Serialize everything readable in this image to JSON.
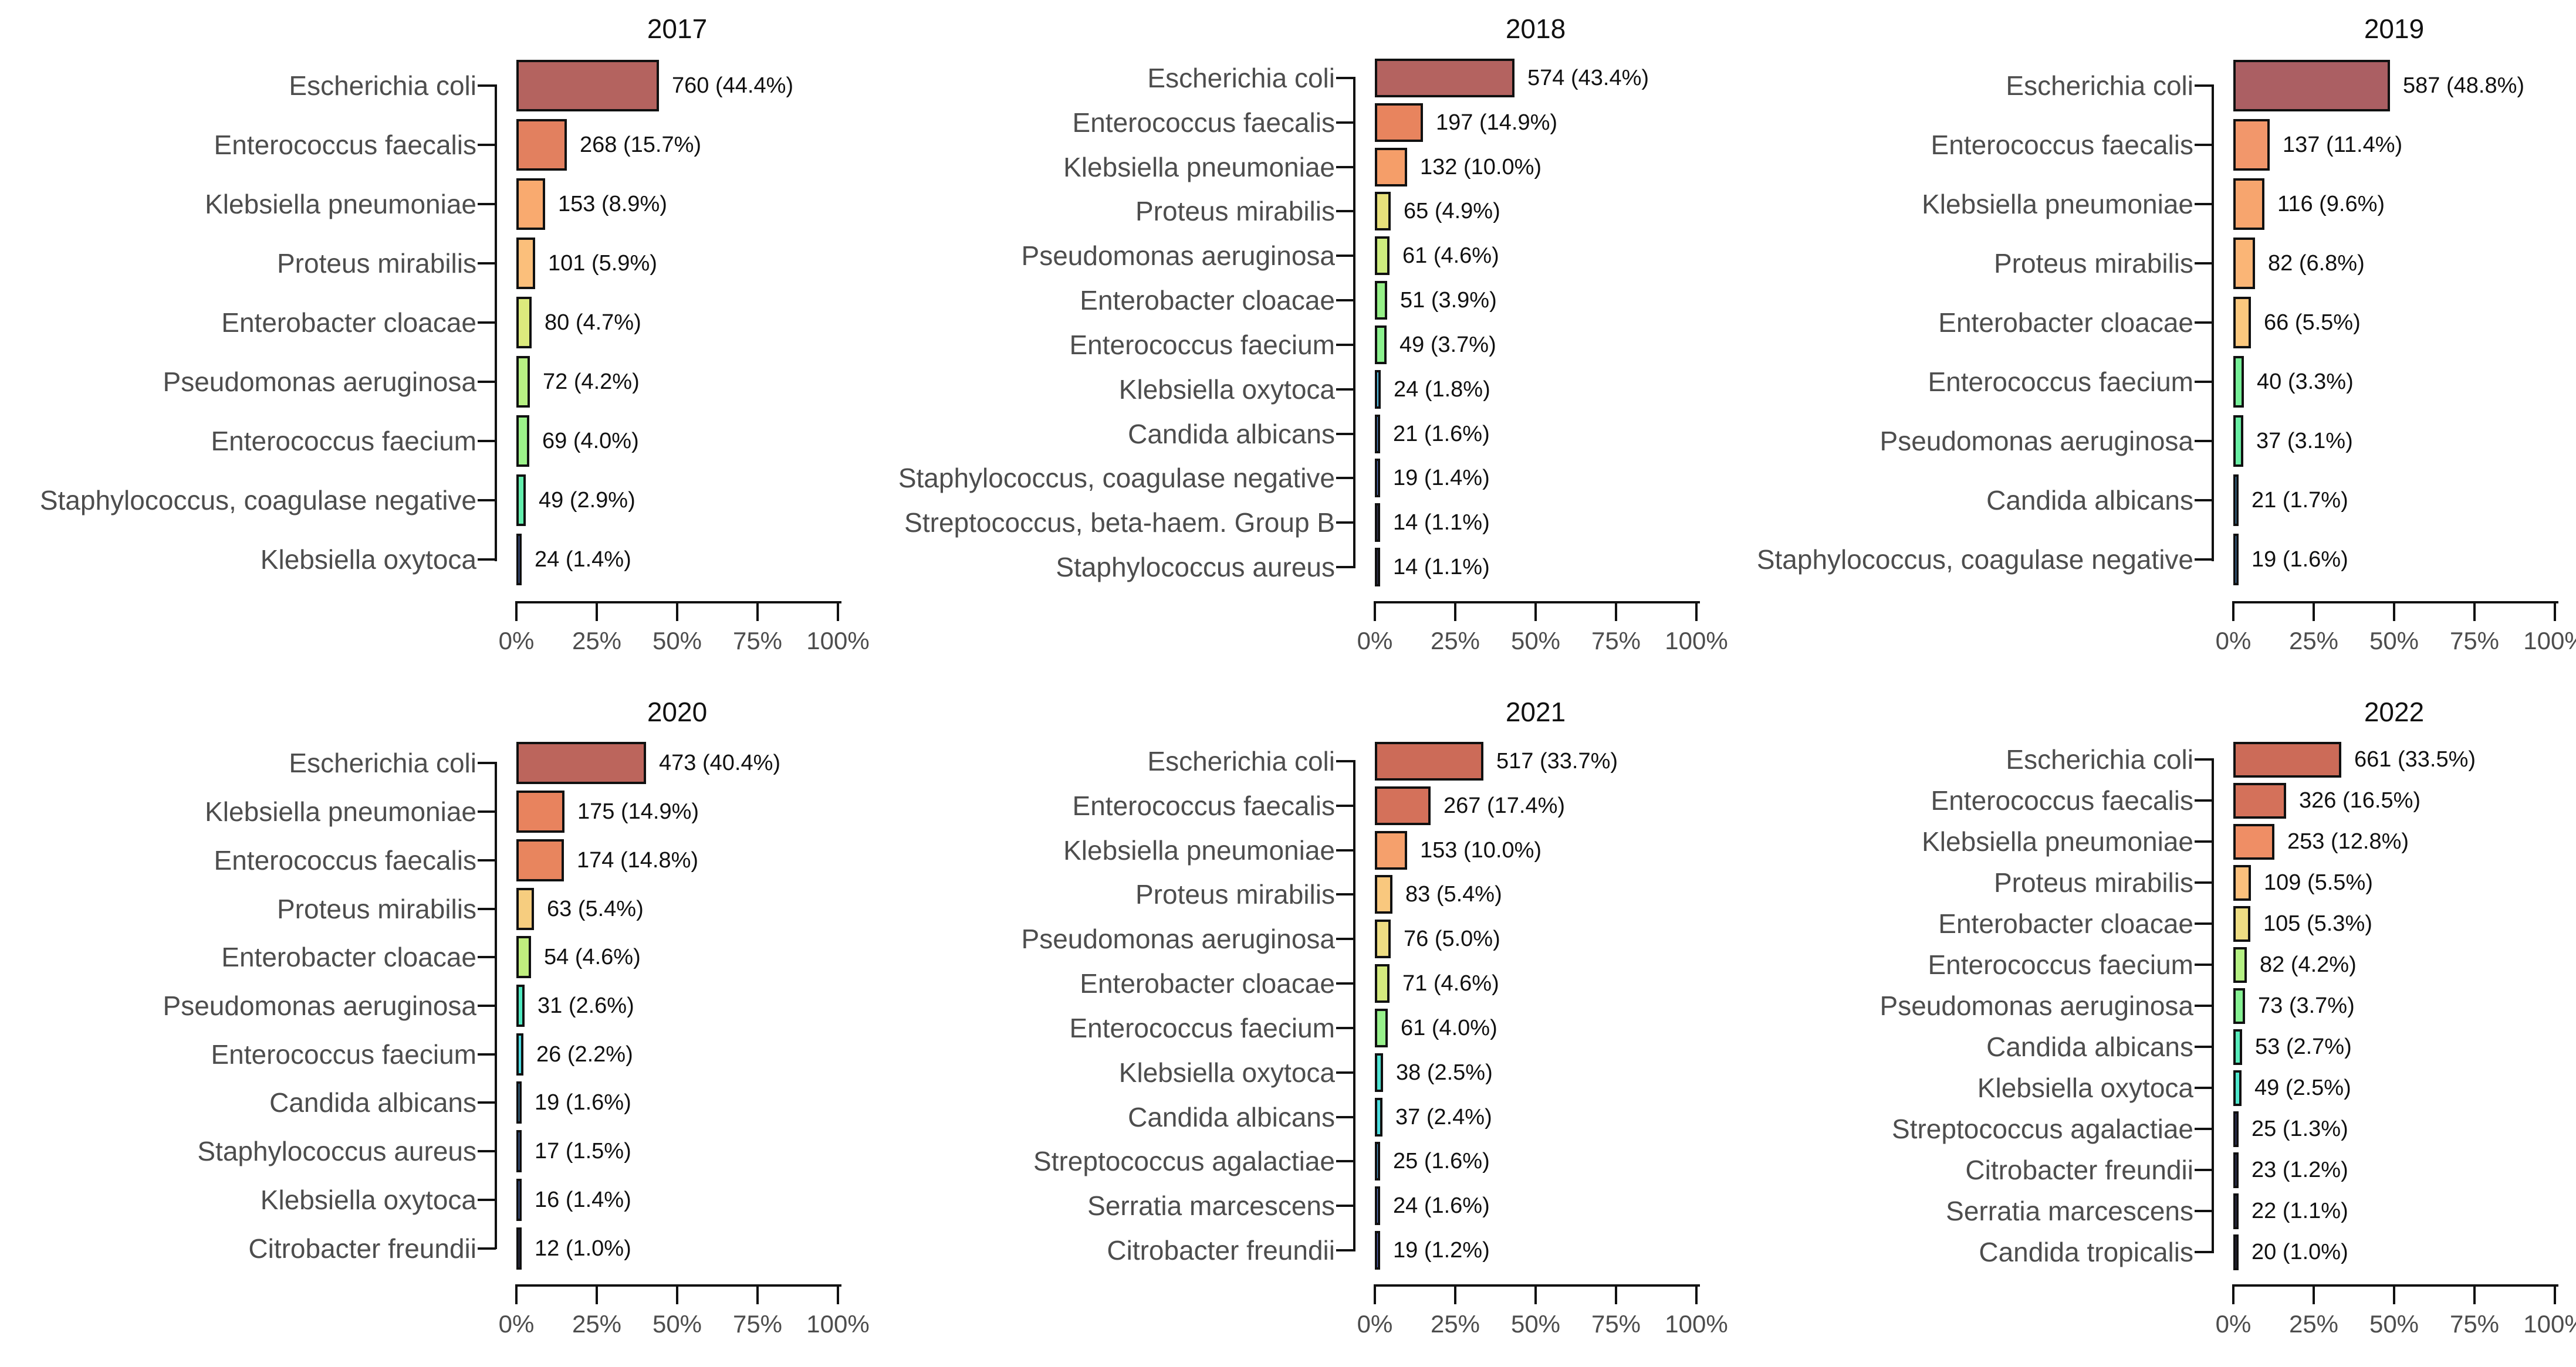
{
  "chart_data": {
    "type": "bar",
    "orientation": "horizontal",
    "grid_layout": "2 rows x 3 columns of yearly panels",
    "x_axis": {
      "tick_labels": [
        "0%",
        "25%",
        "50%",
        "75%",
        "100%"
      ],
      "tick_values": [
        0,
        25,
        50,
        75,
        100
      ],
      "range": [
        0,
        100
      ]
    },
    "panels": [
      {
        "title": "2017",
        "rows": [
          {
            "label": "Escherichia coli",
            "count": 760,
            "pct": 44.4,
            "annotation": "760 (44.4%)",
            "color": "#b4635f"
          },
          {
            "label": "Enterococcus faecalis",
            "count": 268,
            "pct": 15.7,
            "annotation": "268 (15.7%)",
            "color": "#e2805f"
          },
          {
            "label": "Klebsiella pneumoniae",
            "count": 153,
            "pct": 8.9,
            "annotation": "153 (8.9%)",
            "color": "#f9aa6f"
          },
          {
            "label": "Proteus mirabilis",
            "count": 101,
            "pct": 5.9,
            "annotation": "101 (5.9%)",
            "color": "#fbbf7b"
          },
          {
            "label": "Enterobacter cloacae",
            "count": 80,
            "pct": 4.7,
            "annotation": "80 (4.7%)",
            "color": "#dcea7d"
          },
          {
            "label": "Pseudomonas aeruginosa",
            "count": 72,
            "pct": 4.2,
            "annotation": "72 (4.2%)",
            "color": "#b7f083"
          },
          {
            "label": "Enterococcus faecium",
            "count": 69,
            "pct": 4.0,
            "annotation": "69 (4.0%)",
            "color": "#9cf28a"
          },
          {
            "label": "Staphylococcus, coagulase negative",
            "count": 49,
            "pct": 2.9,
            "annotation": "49 (2.9%)",
            "color": "#63eead"
          },
          {
            "label": "Klebsiella oxytoca",
            "count": 24,
            "pct": 1.4,
            "annotation": "24 (1.4%)",
            "color": "#5f86e8"
          }
        ]
      },
      {
        "title": "2018",
        "rows": [
          {
            "label": "Escherichia coli",
            "count": 574,
            "pct": 43.4,
            "annotation": "574 (43.4%)",
            "color": "#b46360"
          },
          {
            "label": "Enterococcus faecalis",
            "count": 197,
            "pct": 14.9,
            "annotation": "197 (14.9%)",
            "color": "#e8845e"
          },
          {
            "label": "Klebsiella pneumoniae",
            "count": 132,
            "pct": 10.0,
            "annotation": "132 (10.0%)",
            "color": "#f59e69"
          },
          {
            "label": "Proteus mirabilis",
            "count": 65,
            "pct": 4.9,
            "annotation": "65 (4.9%)",
            "color": "#e7e07b"
          },
          {
            "label": "Pseudomonas aeruginosa",
            "count": 61,
            "pct": 4.6,
            "annotation": "61 (4.6%)",
            "color": "#cdec7e"
          },
          {
            "label": "Enterobacter cloacae",
            "count": 51,
            "pct": 3.9,
            "annotation": "51 (3.9%)",
            "color": "#95f087"
          },
          {
            "label": "Enterococcus faecium",
            "count": 49,
            "pct": 3.7,
            "annotation": "49 (3.7%)",
            "color": "#8bf18e"
          },
          {
            "label": "Klebsiella oxytoca",
            "count": 24,
            "pct": 1.8,
            "annotation": "24 (1.8%)",
            "color": "#54c6ee"
          },
          {
            "label": "Candida albicans",
            "count": 21,
            "pct": 1.6,
            "annotation": "21 (1.6%)",
            "color": "#5c9ef0"
          },
          {
            "label": "Staphylococcus, coagulase negative",
            "count": 19,
            "pct": 1.4,
            "annotation": "19 (1.4%)",
            "color": "#6188e8"
          },
          {
            "label": "Streptococcus, beta-haem. Group B",
            "count": 14,
            "pct": 1.1,
            "annotation": "14 (1.1%)",
            "color": "#3e4168"
          },
          {
            "label": "Staphylococcus aureus",
            "count": 14,
            "pct": 1.1,
            "annotation": "14 (1.1%)",
            "color": "#383b60"
          }
        ]
      },
      {
        "title": "2019",
        "rows": [
          {
            "label": "Escherichia coli",
            "count": 587,
            "pct": 48.8,
            "annotation": "587 (48.8%)",
            "color": "#ab5f63"
          },
          {
            "label": "Enterococcus faecalis",
            "count": 137,
            "pct": 11.4,
            "annotation": "137 (11.4%)",
            "color": "#f2976b"
          },
          {
            "label": "Klebsiella pneumoniae",
            "count": 116,
            "pct": 9.6,
            "annotation": "116 (9.6%)",
            "color": "#f7a56e"
          },
          {
            "label": "Proteus mirabilis",
            "count": 82,
            "pct": 6.8,
            "annotation": "82 (6.8%)",
            "color": "#fab576"
          },
          {
            "label": "Enterobacter cloacae",
            "count": 66,
            "pct": 5.5,
            "annotation": "66 (5.5%)",
            "color": "#fbc87e"
          },
          {
            "label": "Enterococcus faecium",
            "count": 40,
            "pct": 3.3,
            "annotation": "40 (3.3%)",
            "color": "#76f098"
          },
          {
            "label": "Pseudomonas aeruginosa",
            "count": 37,
            "pct": 3.1,
            "annotation": "37 (3.1%)",
            "color": "#69efa4"
          },
          {
            "label": "Candida albicans",
            "count": 21,
            "pct": 1.7,
            "annotation": "21 (1.7%)",
            "color": "#57b2f1"
          },
          {
            "label": "Staphylococcus, coagulase negative",
            "count": 19,
            "pct": 1.6,
            "annotation": "19 (1.6%)",
            "color": "#5aa8f2"
          }
        ]
      },
      {
        "title": "2020",
        "rows": [
          {
            "label": "Escherichia coli",
            "count": 473,
            "pct": 40.4,
            "annotation": "473 (40.4%)",
            "color": "#bc655c"
          },
          {
            "label": "Klebsiella pneumoniae",
            "count": 175,
            "pct": 14.9,
            "annotation": "175 (14.9%)",
            "color": "#e8835e"
          },
          {
            "label": "Enterococcus faecalis",
            "count": 174,
            "pct": 14.8,
            "annotation": "174 (14.8%)",
            "color": "#e8855e"
          },
          {
            "label": "Proteus mirabilis",
            "count": 63,
            "pct": 5.4,
            "annotation": "63 (5.4%)",
            "color": "#f6cd7f"
          },
          {
            "label": "Enterobacter cloacae",
            "count": 54,
            "pct": 4.6,
            "annotation": "54 (4.6%)",
            "color": "#c0ee7e"
          },
          {
            "label": "Pseudomonas aeruginosa",
            "count": 31,
            "pct": 2.6,
            "annotation": "31 (2.6%)",
            "color": "#4fe9c0"
          },
          {
            "label": "Enterococcus faecium",
            "count": 26,
            "pct": 2.2,
            "annotation": "26 (2.2%)",
            "color": "#4cdbe2"
          },
          {
            "label": "Candida albicans",
            "count": 19,
            "pct": 1.6,
            "annotation": "19 (1.6%)",
            "color": "#55b5f2"
          },
          {
            "label": "Staphylococcus aureus",
            "count": 17,
            "pct": 1.5,
            "annotation": "17 (1.5%)",
            "color": "#5a94ee"
          },
          {
            "label": "Klebsiella oxytoca",
            "count": 16,
            "pct": 1.4,
            "annotation": "16 (1.4%)",
            "color": "#5d85e6"
          },
          {
            "label": "Citrobacter freundii",
            "count": 12,
            "pct": 1.0,
            "annotation": "12 (1.0%)",
            "color": "#3c3f6b"
          }
        ]
      },
      {
        "title": "2021",
        "rows": [
          {
            "label": "Escherichia coli",
            "count": 517,
            "pct": 33.7,
            "annotation": "517 (33.7%)",
            "color": "#cc6b58"
          },
          {
            "label": "Enterococcus faecalis",
            "count": 267,
            "pct": 17.4,
            "annotation": "267 (17.4%)",
            "color": "#d4715a"
          },
          {
            "label": "Klebsiella pneumoniae",
            "count": 153,
            "pct": 10.0,
            "annotation": "153 (10.0%)",
            "color": "#f5a06c"
          },
          {
            "label": "Proteus mirabilis",
            "count": 83,
            "pct": 5.4,
            "annotation": "83 (5.4%)",
            "color": "#f9c87e"
          },
          {
            "label": "Pseudomonas aeruginosa",
            "count": 76,
            "pct": 5.0,
            "annotation": "76 (5.0%)",
            "color": "#eedd83"
          },
          {
            "label": "Enterobacter cloacae",
            "count": 71,
            "pct": 4.6,
            "annotation": "71 (4.6%)",
            "color": "#d4ea7e"
          },
          {
            "label": "Enterococcus faecium",
            "count": 61,
            "pct": 4.0,
            "annotation": "61 (4.0%)",
            "color": "#97f18b"
          },
          {
            "label": "Klebsiella oxytoca",
            "count": 38,
            "pct": 2.5,
            "annotation": "38 (2.5%)",
            "color": "#4fe4d4"
          },
          {
            "label": "Candida albicans",
            "count": 37,
            "pct": 2.4,
            "annotation": "37 (2.4%)",
            "color": "#4cdfe0"
          },
          {
            "label": "Streptococcus agalactiae",
            "count": 25,
            "pct": 1.6,
            "annotation": "25 (1.6%)",
            "color": "#58b3f2"
          },
          {
            "label": "Serratia marcescens",
            "count": 24,
            "pct": 1.6,
            "annotation": "24 (1.6%)",
            "color": "#688fee"
          },
          {
            "label": "Citrobacter freundii",
            "count": 19,
            "pct": 1.2,
            "annotation": "19 (1.2%)",
            "color": "#5f74da"
          }
        ]
      },
      {
        "title": "2022",
        "rows": [
          {
            "label": "Escherichia coli",
            "count": 661,
            "pct": 33.5,
            "annotation": "661 (33.5%)",
            "color": "#cc6b58"
          },
          {
            "label": "Enterococcus faecalis",
            "count": 326,
            "pct": 16.5,
            "annotation": "326 (16.5%)",
            "color": "#d4715a"
          },
          {
            "label": "Klebsiella pneumoniae",
            "count": 253,
            "pct": 12.8,
            "annotation": "253 (12.8%)",
            "color": "#ef8e65"
          },
          {
            "label": "Proteus mirabilis",
            "count": 109,
            "pct": 5.5,
            "annotation": "109 (5.5%)",
            "color": "#fbc07c"
          },
          {
            "label": "Enterobacter cloacae",
            "count": 105,
            "pct": 5.3,
            "annotation": "105 (5.3%)",
            "color": "#eedd83"
          },
          {
            "label": "Enterococcus faecium",
            "count": 82,
            "pct": 4.2,
            "annotation": "82 (4.2%)",
            "color": "#b5f083"
          },
          {
            "label": "Pseudomonas aeruginosa",
            "count": 73,
            "pct": 3.7,
            "annotation": "73 (3.7%)",
            "color": "#85f192"
          },
          {
            "label": "Candida albicans",
            "count": 53,
            "pct": 2.7,
            "annotation": "53 (2.7%)",
            "color": "#58ecbc"
          },
          {
            "label": "Klebsiella oxytoca",
            "count": 49,
            "pct": 2.5,
            "annotation": "49 (2.5%)",
            "color": "#4fe8cd"
          },
          {
            "label": "Streptococcus agalactiae",
            "count": 25,
            "pct": 1.3,
            "annotation": "25 (1.3%)",
            "color": "#46509e"
          },
          {
            "label": "Citrobacter freundii",
            "count": 23,
            "pct": 1.2,
            "annotation": "23 (1.2%)",
            "color": "#434b8e"
          },
          {
            "label": "Serratia marcescens",
            "count": 22,
            "pct": 1.1,
            "annotation": "22 (1.1%)",
            "color": "#3f4377"
          },
          {
            "label": "Candida tropicalis",
            "count": 20,
            "pct": 1.0,
            "annotation": "20 (1.0%)",
            "color": "#333355"
          }
        ]
      }
    ]
  },
  "styles": {
    "background": "#ffffff",
    "label_color": "#4d4d4d",
    "annotation_color": "#111111",
    "axis_color": "#111111",
    "axis_label_color": "#4d4d4d",
    "title_color": "#111111",
    "bar_border_color": "#111111"
  }
}
